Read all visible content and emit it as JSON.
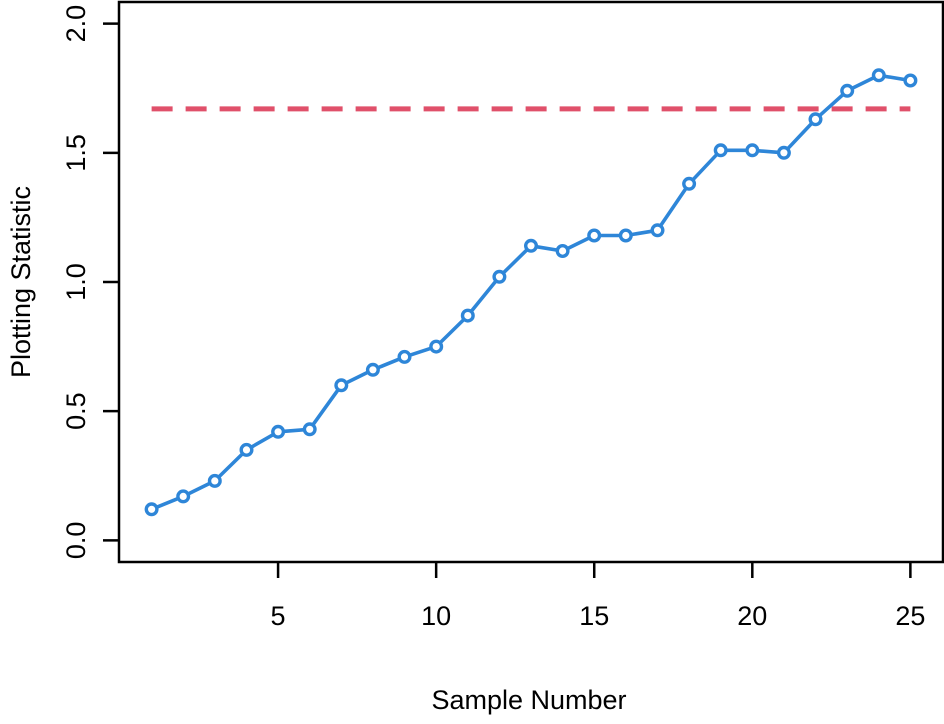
{
  "chart_data": {
    "type": "line",
    "title": "",
    "xlabel": "Sample Number",
    "ylabel": "Plotting Statistic",
    "x": [
      1,
      2,
      3,
      4,
      5,
      6,
      7,
      8,
      9,
      10,
      11,
      12,
      13,
      14,
      15,
      16,
      17,
      18,
      19,
      20,
      21,
      22,
      23,
      24,
      25
    ],
    "series": [
      {
        "name": "plotting-statistic",
        "values": [
          0.12,
          0.17,
          0.23,
          0.35,
          0.42,
          0.43,
          0.6,
          0.66,
          0.71,
          0.75,
          0.87,
          1.02,
          1.14,
          1.12,
          1.18,
          1.18,
          1.2,
          1.38,
          1.51,
          1.51,
          1.5,
          1.63,
          1.74,
          1.8,
          1.78
        ],
        "color": "#2E86D8",
        "marker": "open-circle",
        "marker_fill": "#FFFFFF"
      }
    ],
    "reference_line": {
      "value": 1.67,
      "style": "dashed",
      "color": "#E0506A",
      "x_start": 1,
      "x_end": 25
    },
    "xlim": [
      0,
      26
    ],
    "ylim": [
      -0.08,
      2.08
    ],
    "x_ticks": [
      5,
      10,
      15,
      20,
      25
    ],
    "x_tick_labels": [
      "5",
      "10",
      "15",
      "20",
      "25"
    ],
    "y_ticks": [
      0,
      0.5,
      1.0,
      1.5,
      2.0
    ],
    "y_tick_labels": [
      "0.0",
      "0.5",
      "1.0",
      "1.5",
      "2.0"
    ],
    "grid": false,
    "legend": null,
    "axis_color": "#000000"
  }
}
